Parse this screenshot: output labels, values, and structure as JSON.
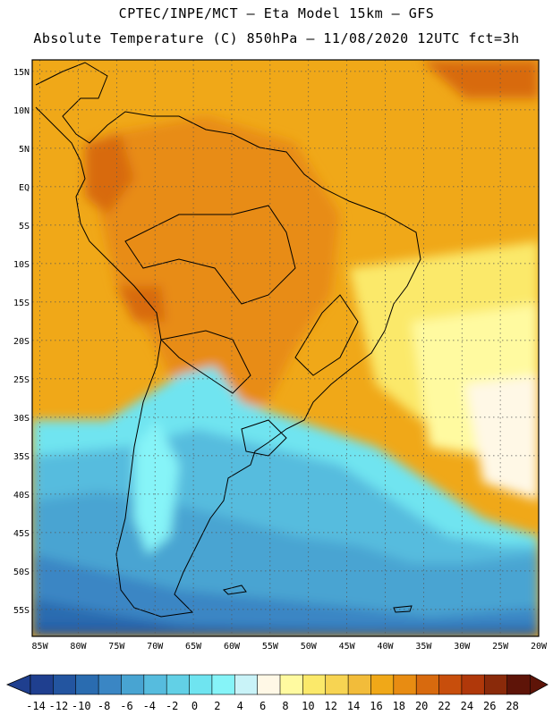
{
  "header": {
    "line1": "CPTEC/INPE/MCT —  Eta Model 15km — GFS",
    "line2": "Absolute Temperature (C) 850hPa — 11/08/2020 12UTC fct=3h"
  },
  "axes": {
    "lat_labels": [
      "15N",
      "10N",
      "5N",
      "EQ",
      "5S",
      "10S",
      "15S",
      "20S",
      "25S",
      "30S",
      "35S",
      "40S",
      "45S",
      "50S",
      "55S"
    ],
    "lon_labels": [
      "85W",
      "80W",
      "75W",
      "70W",
      "65W",
      "60W",
      "55W",
      "50W",
      "45W",
      "40W",
      "35W",
      "30W",
      "25W",
      "20W"
    ],
    "grid": "dotted"
  },
  "colorbar": {
    "labels": [
      "-14",
      "-12",
      "-10",
      "-8",
      "-6",
      "-4",
      "-2",
      "0",
      "2",
      "4",
      "6",
      "8",
      "10",
      "12",
      "14",
      "16",
      "18",
      "20",
      "22",
      "24",
      "26",
      "28"
    ],
    "colors": [
      "#1f3f8f",
      "#2355a0",
      "#2a6cb0",
      "#3a86c4",
      "#48a4d2",
      "#56bcde",
      "#62d0e6",
      "#6fe4f0",
      "#86f4f8",
      "#c9f3f8",
      "#fff8e6",
      "#fffaa0",
      "#fbe96a",
      "#f7d452",
      "#f2bc3a",
      "#f0a818",
      "#e88c12",
      "#d86a0e",
      "#c84e0c",
      "#b0380a",
      "#8a2a0a",
      "#5e1408"
    ]
  }
}
